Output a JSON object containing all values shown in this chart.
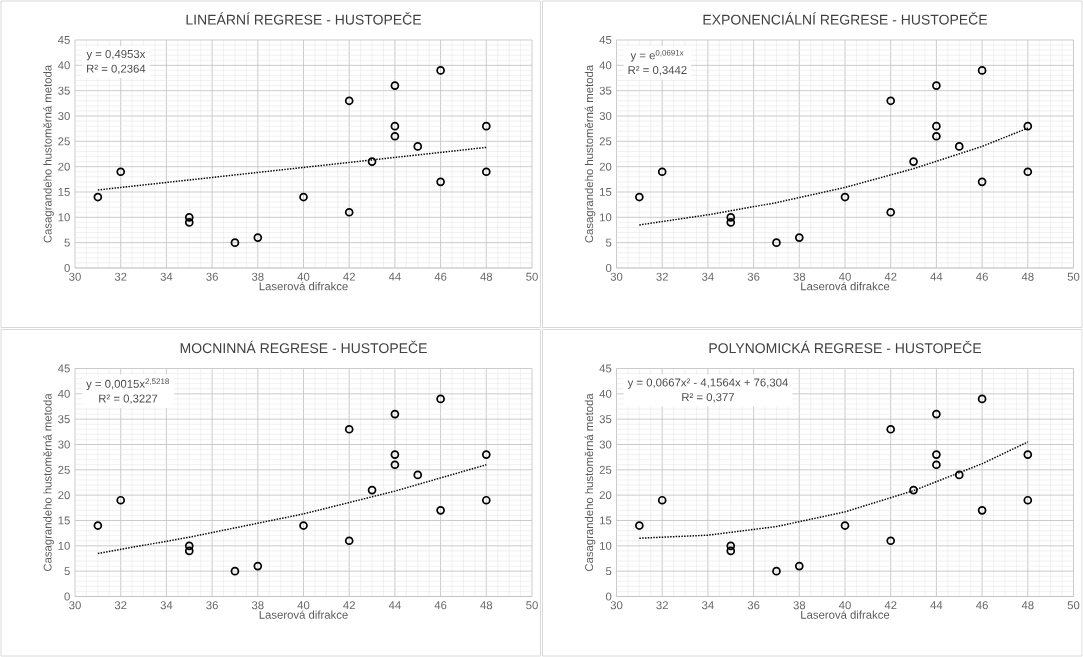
{
  "chart_data": [
    {
      "type": "scatter",
      "title": "LINEÁRNÍ REGRESE - HUSTOPEČE",
      "xlabel": "Laserová difrakce",
      "ylabel": "Casagrandeho hustoměrná metoda",
      "annotations": [
        "y = 0,4953x",
        "R² = 0,2364"
      ],
      "grid": true,
      "xlim": [
        30,
        50
      ],
      "ylim": [
        0,
        45
      ],
      "xticks": [
        30,
        32,
        34,
        36,
        38,
        40,
        42,
        44,
        46,
        48,
        50
      ],
      "yticks": [
        0,
        5,
        10,
        15,
        20,
        25,
        30,
        35,
        40,
        45
      ],
      "series": [
        {
          "marker": "circle",
          "color": "#000000",
          "x": [
            31,
            32,
            35,
            35,
            37,
            38,
            40,
            42,
            42,
            43,
            44,
            44,
            44,
            45,
            46,
            46,
            48,
            48
          ],
          "values": [
            14,
            19,
            10,
            9,
            5,
            6,
            14,
            33,
            11,
            21,
            36,
            28,
            26,
            24,
            39,
            17,
            28,
            19
          ]
        },
        {
          "type": "line",
          "line_style": "dotted",
          "color": "#000000",
          "x": [
            31,
            48
          ],
          "values": [
            15.4,
            23.8
          ]
        }
      ]
    },
    {
      "type": "scatter",
      "title": "EXPONENCIÁLNÍ REGRESE - HUSTOPEČE",
      "xlabel": "Laserová difrakce",
      "ylabel": "Casagrandeho hustoměrná metoda",
      "annotations": [
        "y = e$^{0,0691x}$",
        "R² = 0,3442"
      ],
      "grid": true,
      "xlim": [
        30,
        50
      ],
      "ylim": [
        0,
        45
      ],
      "xticks": [
        30,
        32,
        34,
        36,
        38,
        40,
        42,
        44,
        46,
        48,
        50
      ],
      "yticks": [
        0,
        5,
        10,
        15,
        20,
        25,
        30,
        35,
        40,
        45
      ],
      "series": [
        {
          "marker": "circle",
          "color": "#000000",
          "x": [
            31,
            32,
            35,
            35,
            37,
            38,
            40,
            42,
            42,
            43,
            44,
            44,
            44,
            45,
            46,
            46,
            48,
            48
          ],
          "values": [
            14,
            19,
            10,
            9,
            5,
            6,
            14,
            33,
            11,
            21,
            36,
            28,
            26,
            24,
            39,
            17,
            28,
            19
          ]
        },
        {
          "type": "line",
          "line_style": "dotted",
          "color": "#000000",
          "x": [
            31,
            34,
            37,
            40,
            43,
            46,
            48
          ],
          "values": [
            8.5,
            10.5,
            12.9,
            15.9,
            19.6,
            24,
            27.6
          ]
        }
      ]
    },
    {
      "type": "scatter",
      "title": "MOCNINNÁ REGRESE - HUSTOPEČE",
      "xlabel": "Laserová difrakce",
      "ylabel": "Casagrandeho hustoměrná metoda",
      "annotations": [
        "y = 0,0015x$^{2,5218}$",
        "R² = 0,3227"
      ],
      "grid": true,
      "xlim": [
        30,
        50
      ],
      "ylim": [
        0,
        45
      ],
      "xticks": [
        30,
        32,
        34,
        36,
        38,
        40,
        42,
        44,
        46,
        48,
        50
      ],
      "yticks": [
        0,
        5,
        10,
        15,
        20,
        25,
        30,
        35,
        40,
        45
      ],
      "series": [
        {
          "marker": "circle",
          "color": "#000000",
          "x": [
            31,
            32,
            35,
            35,
            37,
            38,
            40,
            42,
            42,
            43,
            44,
            44,
            44,
            45,
            46,
            46,
            48,
            48
          ],
          "values": [
            14,
            19,
            10,
            9,
            5,
            6,
            14,
            33,
            11,
            21,
            36,
            28,
            26,
            24,
            39,
            17,
            28,
            19
          ]
        },
        {
          "type": "line",
          "line_style": "dotted",
          "color": "#000000",
          "x": [
            31,
            35,
            40,
            44,
            48
          ],
          "values": [
            8.5,
            11.7,
            16.3,
            20.8,
            26
          ]
        }
      ]
    },
    {
      "type": "scatter",
      "title": "POLYNOMICKÁ REGRESE - HUSTOPEČE",
      "xlabel": "Laserová difrakce",
      "ylabel": "Casagrandeho hustoměrná metoda",
      "annotations": [
        "y = 0,0667x² - 4,1564x + 76,304",
        "R² = 0,377"
      ],
      "grid": true,
      "xlim": [
        30,
        50
      ],
      "ylim": [
        0,
        45
      ],
      "xticks": [
        30,
        32,
        34,
        36,
        38,
        40,
        42,
        44,
        46,
        48,
        50
      ],
      "yticks": [
        0,
        5,
        10,
        15,
        20,
        25,
        30,
        35,
        40,
        45
      ],
      "series": [
        {
          "marker": "circle",
          "color": "#000000",
          "x": [
            31,
            32,
            35,
            35,
            37,
            38,
            40,
            42,
            42,
            43,
            44,
            44,
            44,
            45,
            46,
            46,
            48,
            48
          ],
          "values": [
            14,
            19,
            10,
            9,
            5,
            6,
            14,
            33,
            11,
            21,
            36,
            28,
            26,
            24,
            39,
            17,
            28,
            19
          ]
        },
        {
          "type": "line",
          "line_style": "dotted",
          "color": "#000000",
          "x": [
            31,
            34,
            37,
            40,
            43,
            46,
            48
          ],
          "values": [
            11.5,
            12.1,
            13.8,
            16.7,
            20.9,
            26.2,
            30.5
          ]
        }
      ]
    }
  ]
}
